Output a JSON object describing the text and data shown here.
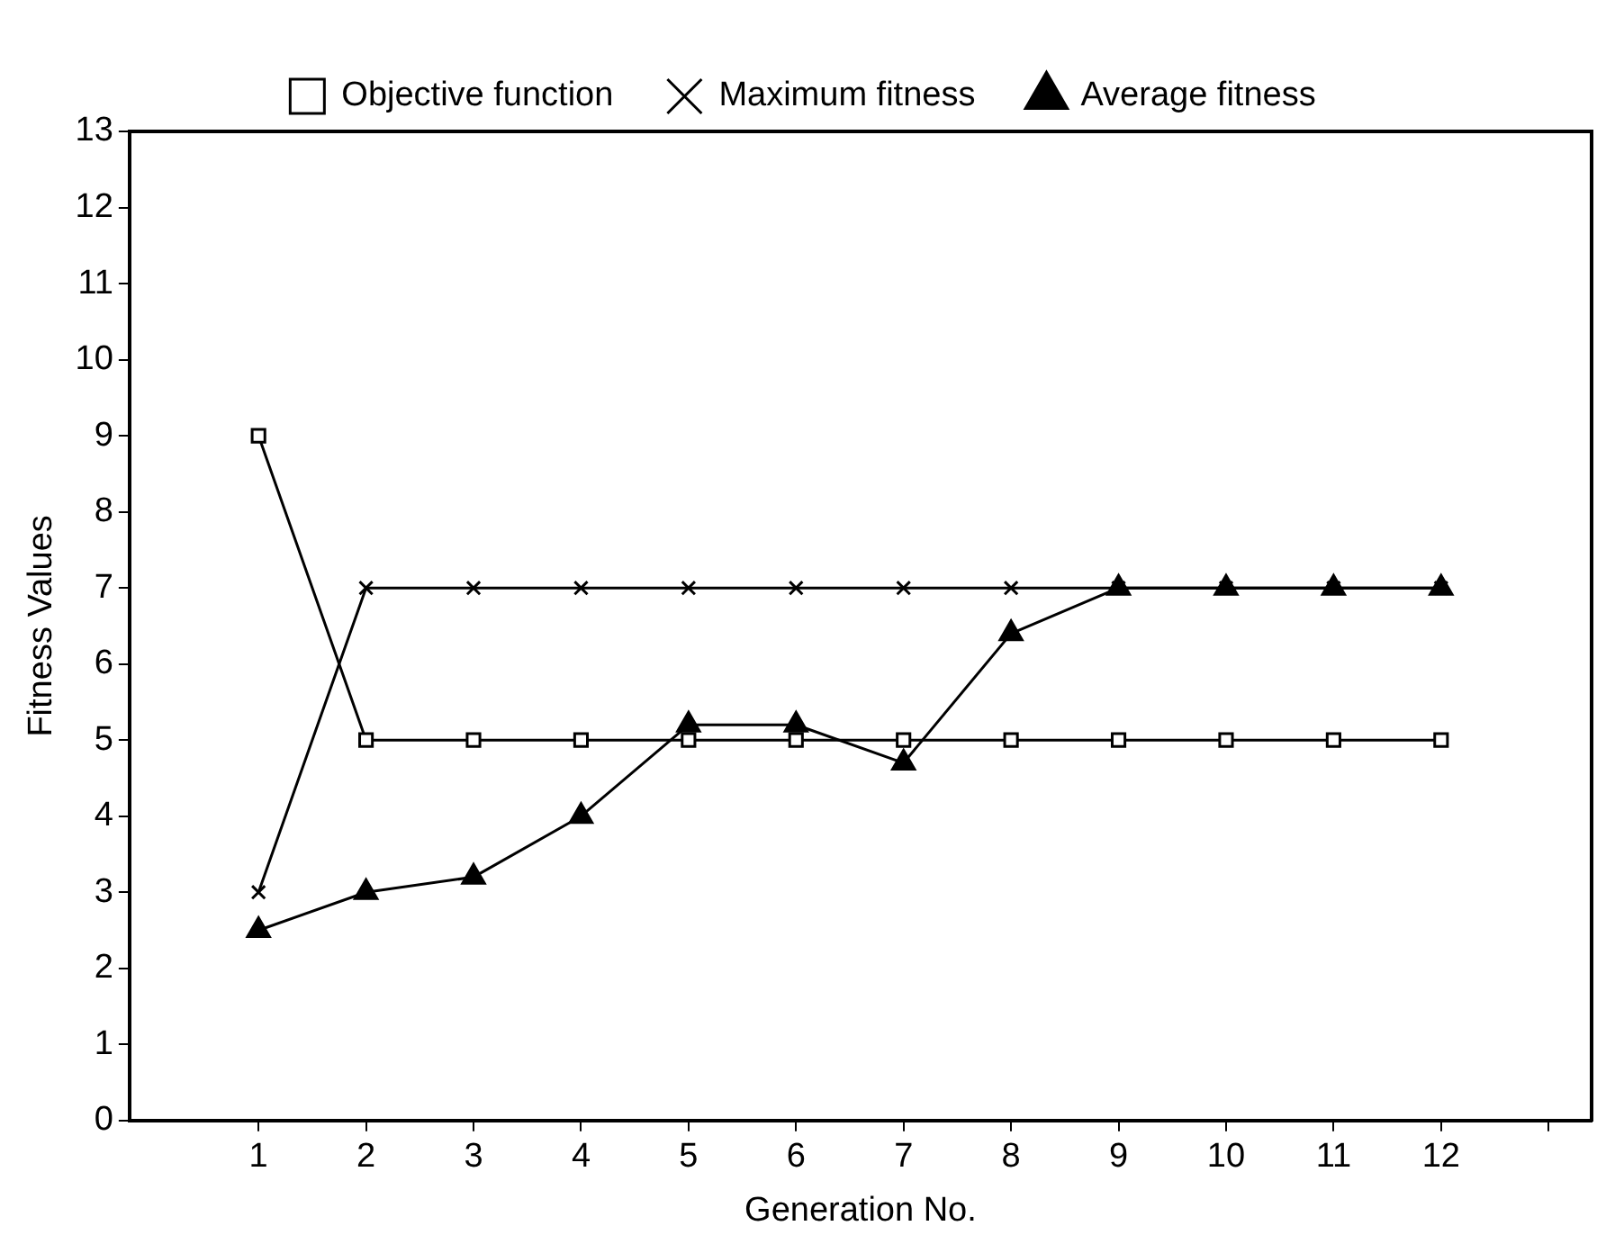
{
  "chart_data": {
    "type": "line",
    "xlabel": "Generation No.",
    "ylabel": "Fitness Values",
    "x": [
      1,
      2,
      3,
      4,
      5,
      6,
      7,
      8,
      9,
      10,
      11,
      12
    ],
    "xlim": [
      -0.2,
      13.4
    ],
    "xticks": [
      1,
      2,
      3,
      4,
      5,
      6,
      7,
      8,
      9,
      10,
      11,
      12,
      {
        "value": 13,
        "label": null
      }
    ],
    "ylim": [
      0,
      13
    ],
    "yticks": [
      0,
      1,
      2,
      3,
      4,
      5,
      6,
      7,
      8,
      9,
      10,
      11,
      12,
      13
    ],
    "grid": false,
    "legend": "top",
    "series": [
      {
        "name": "Objective function",
        "color": "#000000",
        "marker": "square",
        "values": [
          9,
          5,
          5,
          5,
          5,
          5,
          5,
          5,
          5,
          5,
          5,
          5
        ]
      },
      {
        "name": "Maximum fitness",
        "color": "#000000",
        "marker": "cross",
        "values": [
          3,
          7,
          7,
          7,
          7,
          7,
          7,
          7,
          7,
          7,
          7,
          7
        ]
      },
      {
        "name": "Average fitness",
        "color": "#000000",
        "marker": "triangle",
        "values": [
          2.5,
          3,
          3.2,
          4,
          5.2,
          5.2,
          4.7,
          6.4,
          7,
          7,
          7,
          7
        ]
      }
    ]
  }
}
